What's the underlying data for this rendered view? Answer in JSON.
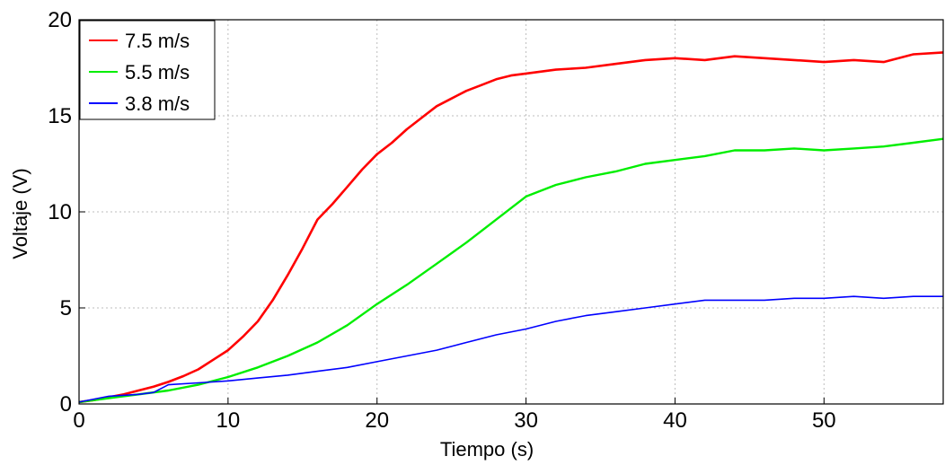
{
  "chart_data": {
    "type": "line",
    "title": "",
    "xlabel": "Tiempo (s)",
    "ylabel": "Voltaje (V)",
    "xlim": [
      0,
      58
    ],
    "ylim": [
      0,
      20
    ],
    "x_ticks": [
      0,
      10,
      20,
      30,
      40,
      50
    ],
    "y_ticks": [
      0,
      5,
      10,
      15,
      20
    ],
    "grid": true,
    "legend_position": "top-left",
    "series": [
      {
        "name": "7.5 m/s",
        "color": "#ff0000",
        "x": [
          0,
          1,
          2,
          3,
          4,
          5,
          6,
          7,
          8,
          9,
          10,
          11,
          12,
          13,
          14,
          15,
          16,
          17,
          18,
          19,
          20,
          21,
          22,
          23,
          24,
          25,
          26,
          27,
          28,
          29,
          30,
          32,
          34,
          36,
          38,
          40,
          42,
          44,
          46,
          48,
          50,
          52,
          54,
          56,
          58
        ],
        "y": [
          0.1,
          0.2,
          0.35,
          0.5,
          0.7,
          0.9,
          1.15,
          1.45,
          1.8,
          2.3,
          2.8,
          3.5,
          4.3,
          5.4,
          6.7,
          8.1,
          9.6,
          10.4,
          11.3,
          12.2,
          13.0,
          13.6,
          14.3,
          14.9,
          15.5,
          15.9,
          16.3,
          16.6,
          16.9,
          17.1,
          17.2,
          17.4,
          17.5,
          17.7,
          17.9,
          18.0,
          17.9,
          18.1,
          18.0,
          17.9,
          17.8,
          17.9,
          17.8,
          18.2,
          18.3
        ]
      },
      {
        "name": "5.5 m/s",
        "color": "#00ee00",
        "x": [
          0,
          2,
          4,
          6,
          8,
          10,
          12,
          14,
          16,
          18,
          20,
          22,
          24,
          26,
          28,
          30,
          32,
          34,
          36,
          38,
          40,
          42,
          44,
          46,
          48,
          50,
          52,
          54,
          56,
          58
        ],
        "y": [
          0.1,
          0.3,
          0.5,
          0.7,
          1.0,
          1.4,
          1.9,
          2.5,
          3.2,
          4.1,
          5.2,
          6.2,
          7.3,
          8.4,
          9.6,
          10.8,
          11.4,
          11.8,
          12.1,
          12.5,
          12.7,
          12.9,
          13.2,
          13.2,
          13.3,
          13.2,
          13.3,
          13.4,
          13.6,
          13.8
        ]
      },
      {
        "name": "3.8 m/s",
        "color": "#0000ff",
        "x": [
          0,
          2,
          4,
          5,
          6,
          8,
          10,
          12,
          14,
          16,
          18,
          20,
          22,
          24,
          26,
          28,
          30,
          32,
          34,
          36,
          38,
          40,
          42,
          44,
          46,
          48,
          50,
          52,
          54,
          56,
          58
        ],
        "y": [
          0.1,
          0.4,
          0.5,
          0.6,
          1.0,
          1.1,
          1.2,
          1.35,
          1.5,
          1.7,
          1.9,
          2.2,
          2.5,
          2.8,
          3.2,
          3.6,
          3.9,
          4.3,
          4.6,
          4.8,
          5.0,
          5.2,
          5.4,
          5.4,
          5.4,
          5.5,
          5.5,
          5.6,
          5.5,
          5.6,
          5.6
        ]
      }
    ]
  }
}
